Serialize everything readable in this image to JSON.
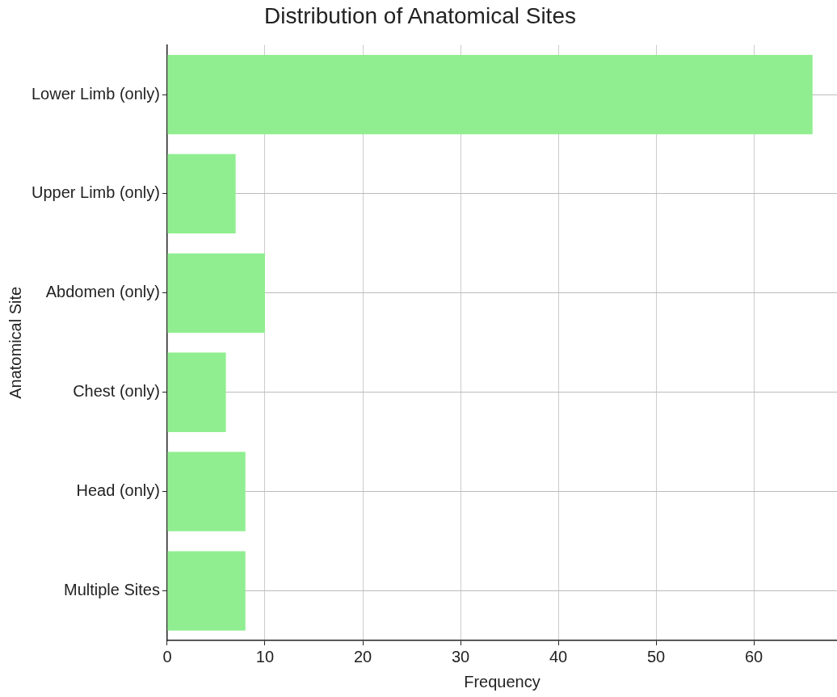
{
  "chart_data": {
    "type": "bar",
    "orientation": "horizontal",
    "title": "Distribution of Anatomical Sites",
    "xlabel": "Frequency",
    "ylabel": "Anatomical Site",
    "categories": [
      "Lower Limb (only)",
      "Upper Limb (only)",
      "Abdomen (only)",
      "Chest (only)",
      "Head (only)",
      "Multiple Sites"
    ],
    "values": [
      66,
      7,
      10,
      6,
      8,
      8
    ],
    "color": "#90ee90",
    "xlim": [
      0,
      68.5
    ],
    "xticks": [
      0,
      10,
      20,
      30,
      40,
      50,
      60
    ],
    "grid": true,
    "legend": false
  }
}
